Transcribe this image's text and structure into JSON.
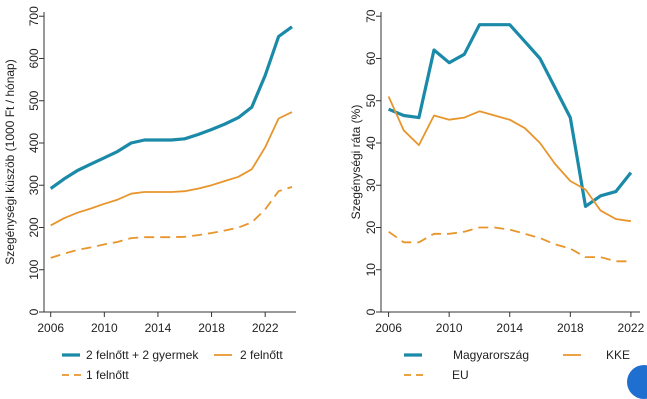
{
  "chart_data": [
    {
      "type": "line",
      "ylabel": "Szegénységi küszöb (1000 Ft / hónap)",
      "xlabel": "",
      "xlim": [
        2005.5,
        2024.3
      ],
      "ylim": [
        0,
        710
      ],
      "xticks": [
        2006,
        2010,
        2014,
        2018,
        2022
      ],
      "yticks": [
        0,
        100,
        200,
        300,
        400,
        500,
        600,
        700
      ],
      "grid": false,
      "legend_position": "bottom",
      "series": [
        {
          "name": "2 felnőtt + 2 gyermek",
          "color": "#1a8aa8",
          "dash": "solid",
          "width": 3.2,
          "x": [
            2006,
            2007,
            2008,
            2009,
            2010,
            2011,
            2012,
            2013,
            2014,
            2015,
            2016,
            2017,
            2018,
            2019,
            2020,
            2021,
            2022,
            2023,
            2024
          ],
          "values": [
            292,
            315,
            335,
            350,
            365,
            380,
            400,
            407,
            407,
            407,
            410,
            420,
            432,
            445,
            460,
            485,
            560,
            652,
            675
          ]
        },
        {
          "name": "2 felnőtt",
          "color": "#e8952b",
          "dash": "solid",
          "width": 1.8,
          "x": [
            2006,
            2007,
            2008,
            2009,
            2010,
            2011,
            2012,
            2013,
            2014,
            2015,
            2016,
            2017,
            2018,
            2019,
            2020,
            2021,
            2022,
            2023,
            2024
          ],
          "values": [
            205,
            222,
            235,
            245,
            256,
            266,
            280,
            284,
            284,
            284,
            286,
            292,
            300,
            310,
            320,
            338,
            390,
            458,
            473
          ]
        },
        {
          "name": "1 felnőtt",
          "color": "#e8952b",
          "dash": "dashed",
          "width": 1.8,
          "x": [
            2006,
            2007,
            2008,
            2009,
            2010,
            2011,
            2012,
            2013,
            2014,
            2015,
            2016,
            2017,
            2018,
            2019,
            2020,
            2021,
            2022,
            2023,
            2024
          ],
          "values": [
            128,
            138,
            147,
            153,
            160,
            166,
            175,
            177,
            177,
            177,
            178,
            182,
            187,
            193,
            200,
            212,
            243,
            286,
            296
          ]
        }
      ]
    },
    {
      "type": "line",
      "ylabel": "Szegénységi ráta (%)",
      "xlabel": "",
      "xlim": [
        2005.5,
        2022.6
      ],
      "ylim": [
        0,
        71
      ],
      "xticks": [
        2006,
        2010,
        2014,
        2018,
        2022
      ],
      "yticks": [
        0,
        10,
        20,
        30,
        40,
        50,
        60,
        70
      ],
      "grid": false,
      "legend_position": "bottom",
      "series": [
        {
          "name": "Magyarország",
          "color": "#1a8aa8",
          "dash": "solid",
          "width": 3.2,
          "x": [
            2006,
            2007,
            2008,
            2009,
            2010,
            2011,
            2012,
            2013,
            2014,
            2015,
            2016,
            2017,
            2018,
            2019,
            2020,
            2021,
            2022
          ],
          "values": [
            48,
            46.5,
            46,
            62,
            59,
            61,
            68,
            68,
            68,
            64,
            60,
            53,
            46,
            25,
            27.5,
            28.5,
            33
          ]
        },
        {
          "name": "KKE",
          "color": "#e8952b",
          "dash": "solid",
          "width": 1.8,
          "x": [
            2006,
            2007,
            2008,
            2009,
            2010,
            2011,
            2012,
            2013,
            2014,
            2015,
            2016,
            2017,
            2018,
            2019,
            2020,
            2021,
            2022
          ],
          "values": [
            51,
            43,
            39.5,
            46.5,
            45.5,
            46,
            47.5,
            46.5,
            45.5,
            43.5,
            40,
            35,
            31,
            29,
            24,
            22,
            21.5
          ]
        },
        {
          "name": "EU",
          "color": "#e8952b",
          "dash": "dashed",
          "width": 1.8,
          "x": [
            2006,
            2007,
            2008,
            2009,
            2010,
            2011,
            2012,
            2013,
            2014,
            2015,
            2016,
            2017,
            2018,
            2019,
            2020,
            2021,
            2022
          ],
          "values": [
            19,
            16.5,
            16.5,
            18.5,
            18.5,
            19,
            20,
            20,
            19.5,
            18.5,
            17.5,
            16,
            15,
            13,
            13,
            12,
            12
          ]
        }
      ]
    }
  ]
}
